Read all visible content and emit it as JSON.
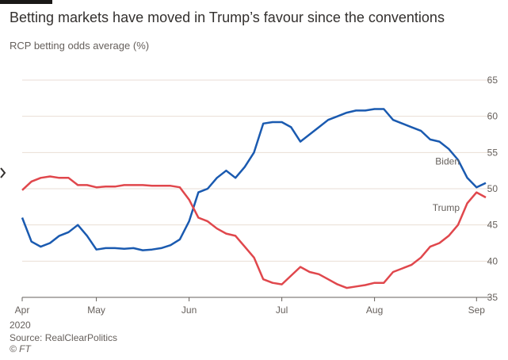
{
  "chart_data": {
    "type": "line",
    "title": "Betting markets have moved in Trump’s favour since the conventions",
    "subtitle": "RCP betting odds average (%)",
    "x_year_label": "2020",
    "source": "Source: RealClearPolitics",
    "credit": "© FT",
    "categories": [
      "Apr",
      null,
      null,
      null,
      null,
      null,
      null,
      null,
      "May",
      null,
      null,
      null,
      null,
      null,
      null,
      null,
      null,
      null,
      "Jun",
      null,
      null,
      null,
      null,
      null,
      null,
      null,
      null,
      null,
      "Jul",
      null,
      null,
      null,
      null,
      null,
      null,
      null,
      null,
      null,
      "Aug",
      null,
      null,
      null,
      null,
      null,
      null,
      null,
      null,
      null,
      null,
      "Sep",
      null
    ],
    "series": [
      {
        "name": "Biden",
        "color": "#1a5ab0",
        "values": [
          46,
          42.7,
          42,
          42.5,
          43.5,
          44,
          45,
          43.5,
          41.6,
          41.8,
          41.8,
          41.7,
          41.8,
          41.5,
          41.6,
          41.8,
          42.2,
          43,
          45.5,
          49.5,
          50,
          51.5,
          52.5,
          51.5,
          53,
          55,
          59,
          59.2,
          59.2,
          58.5,
          56.5,
          57.5,
          58.5,
          59.5,
          60,
          60.5,
          60.8,
          60.8,
          61,
          61,
          59.5,
          59,
          58.5,
          58,
          56.8,
          56.5,
          55.5,
          54,
          51.5,
          50.2,
          50.8
        ]
      },
      {
        "name": "Trump",
        "color": "#e0474c",
        "values": [
          49.8,
          51,
          51.5,
          51.7,
          51.5,
          51.5,
          50.5,
          50.5,
          50.2,
          50.3,
          50.3,
          50.5,
          50.5,
          50.5,
          50.4,
          50.4,
          50.4,
          50.2,
          48.5,
          46,
          45.5,
          44.5,
          43.8,
          43.5,
          42,
          40.5,
          37.5,
          37,
          36.8,
          38,
          39.2,
          38.5,
          38.2,
          37.5,
          36.8,
          36.3,
          36.5,
          36.7,
          37,
          37,
          38.5,
          39,
          39.5,
          40.5,
          42,
          42.5,
          43.5,
          45,
          48,
          49.5,
          48.8
        ]
      }
    ],
    "ylim": [
      35,
      65
    ],
    "yticks": [
      35,
      40,
      45,
      50,
      55,
      60,
      65
    ],
    "grid": true
  }
}
